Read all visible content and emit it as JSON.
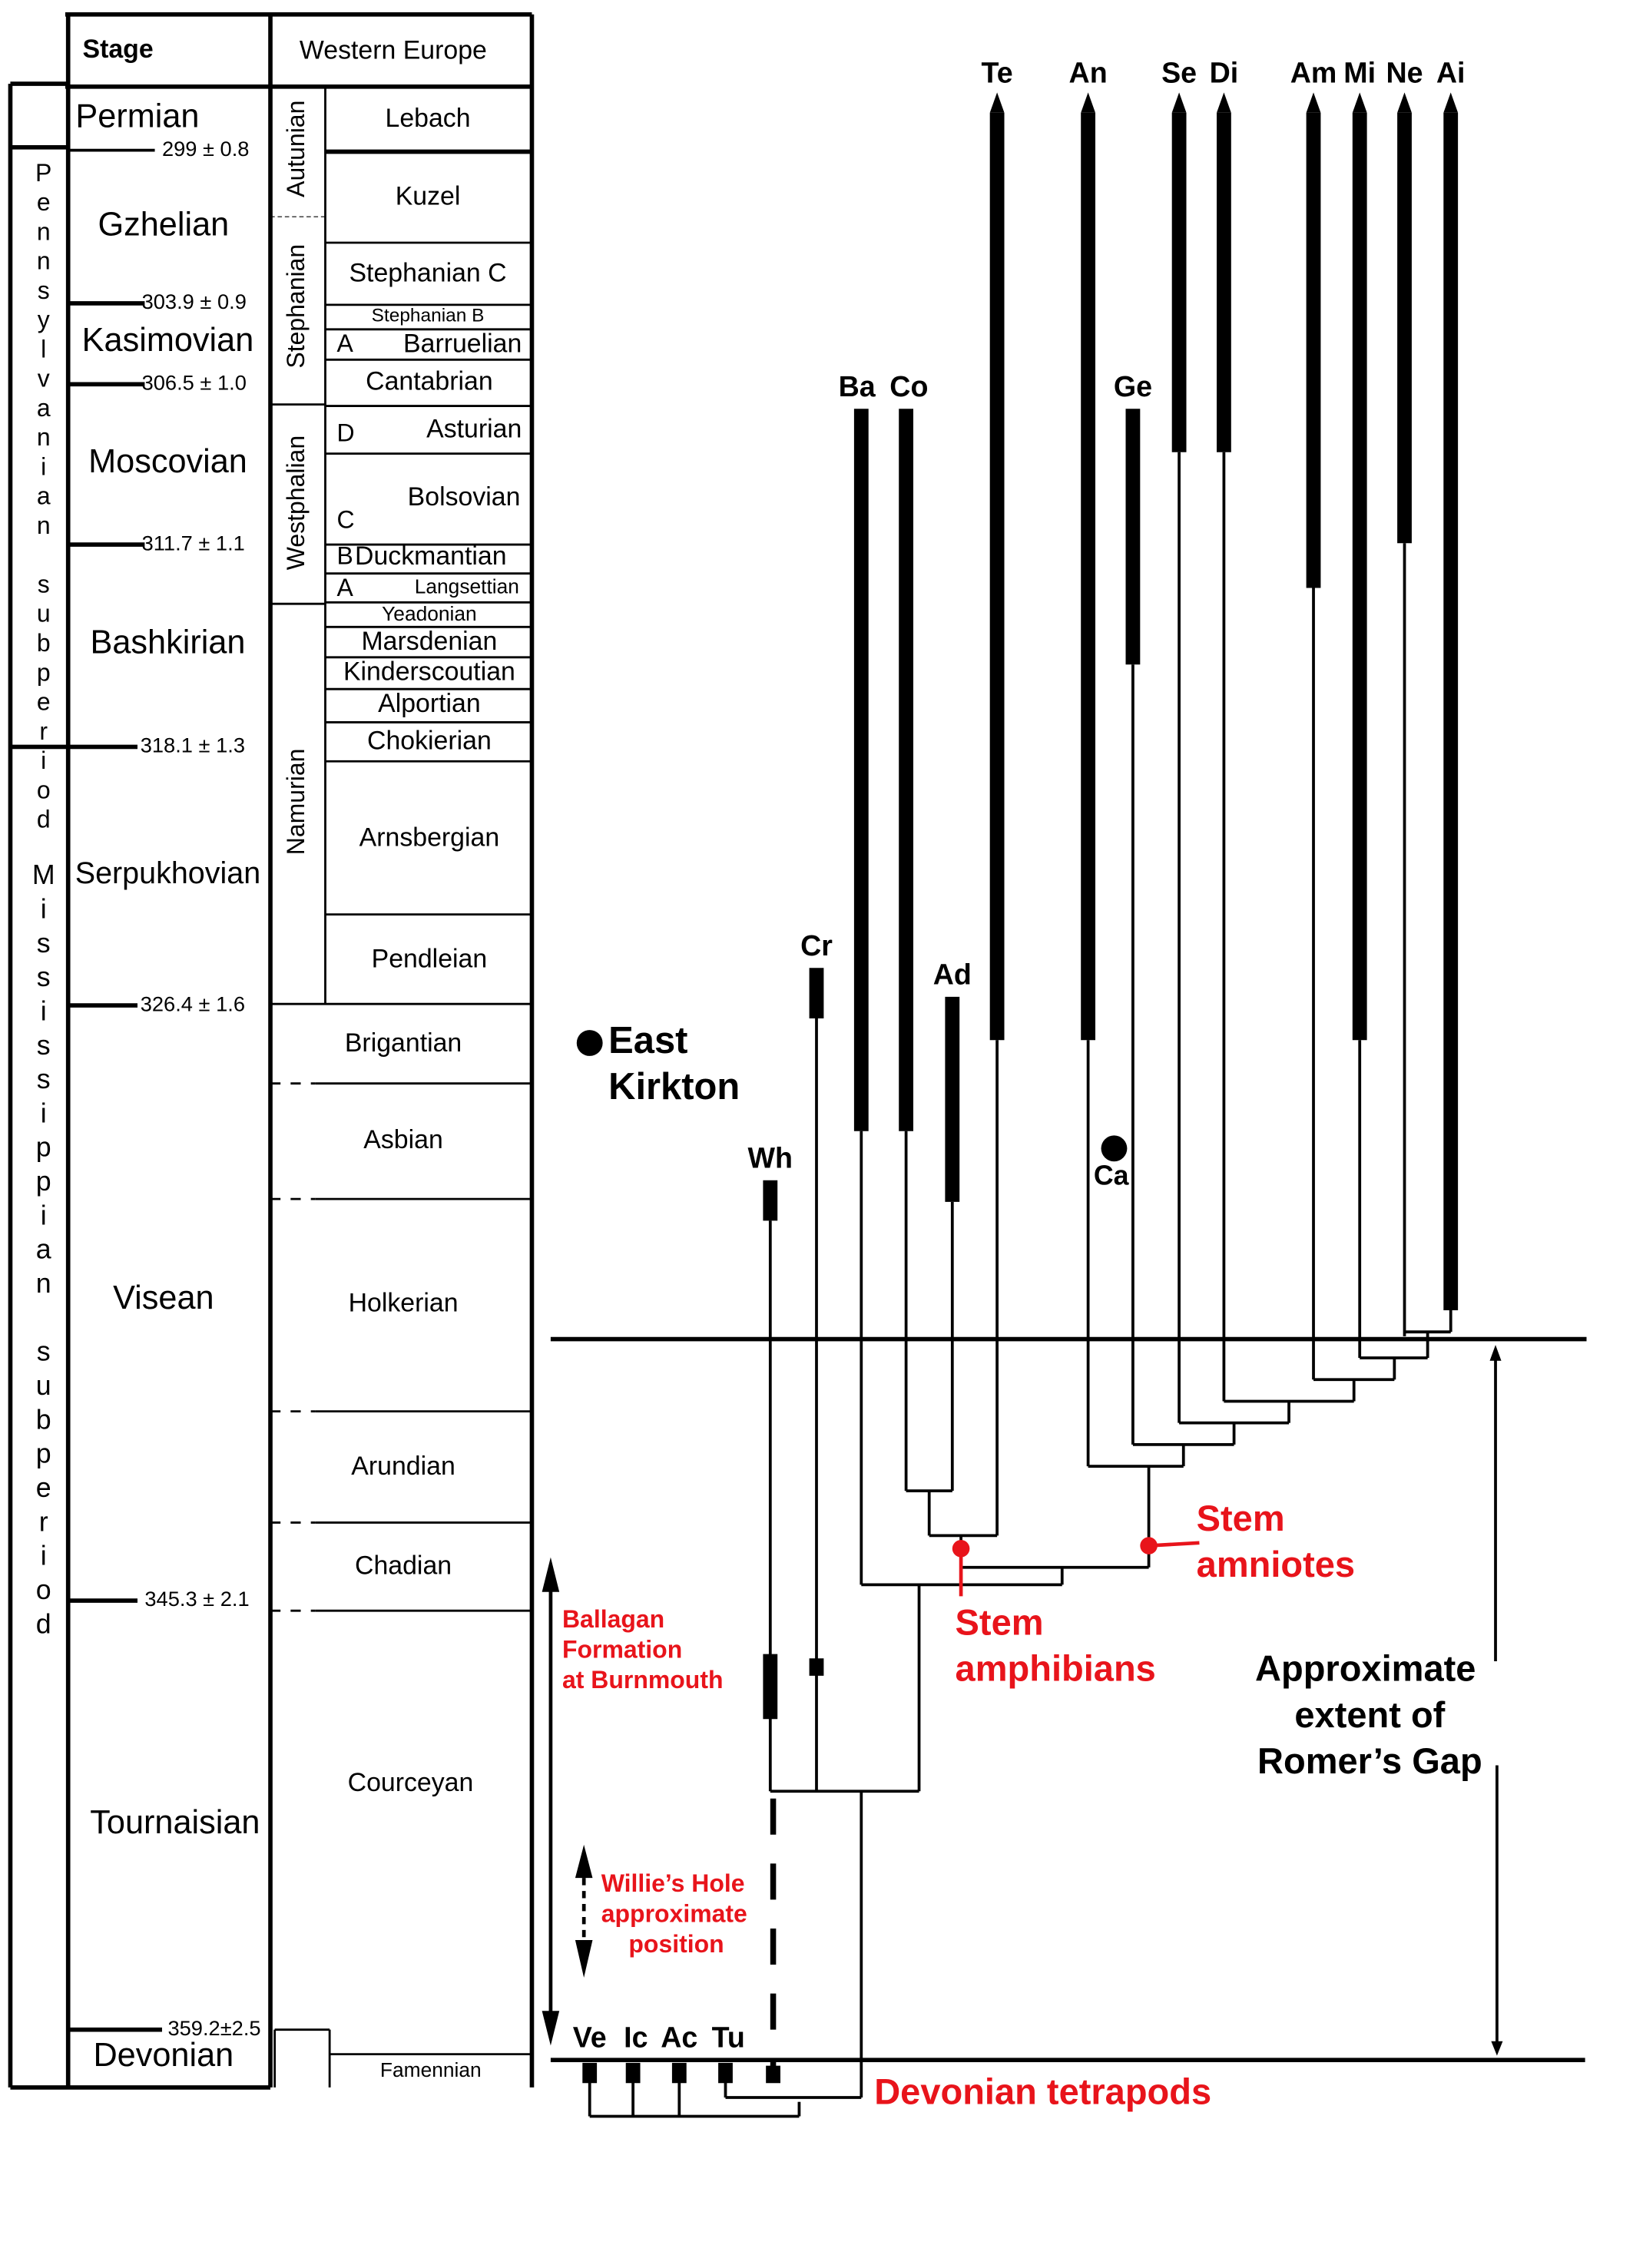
{
  "table": {
    "header_stage": "Stage",
    "header_region": "Western Europe",
    "subperiods": [
      "Pennsylvanian subperiod",
      "Mississippian subperiod"
    ],
    "stages": [
      "Permian",
      "Gzhelian",
      "Kasimovian",
      "Moscovian",
      "Bashkirian",
      "Serpukhovian",
      "Visean",
      "Tournaisian",
      "Devonian"
    ],
    "ages": [
      "299 ± 0.8",
      "303.9 ± 0.9",
      "306.5 ± 1.0",
      "311.7 ± 1.1",
      "318.1 ± 1.3",
      "326.4 ± 1.6",
      "345.3 ± 2.1",
      "359.2±2.5"
    ],
    "series": [
      "Autunian",
      "Stephanian",
      "Westphalian",
      "Namurian"
    ],
    "regional_stages": [
      "Lebach",
      "Kuzel",
      "Stephanian C",
      "Stephanian B",
      "Barruelian",
      "Cantabrian",
      "Asturian",
      "Bolsovian",
      "Duckmantian",
      "Langsettian",
      "Yeadonian",
      "Marsdenian",
      "Kinderscoutian",
      "Alportian",
      "Chokierian",
      "Arnsbergian",
      "Pendleian",
      "Brigantian",
      "Asbian",
      "Holkerian",
      "Arundian",
      "Chadian",
      "Courceyan",
      "Famennian"
    ],
    "substage_letters": [
      "A",
      "D",
      "C",
      "B",
      "A"
    ]
  },
  "diagram": {
    "taxa": [
      "Te",
      "An",
      "Se",
      "Di",
      "Am",
      "Mi",
      "Ne",
      "Ai",
      "Ba",
      "Co",
      "Ge",
      "Cr",
      "Ad",
      "Wh",
      "Ca",
      "Ve",
      "Ic",
      "Ac",
      "Tu"
    ],
    "east_kirkton": [
      "East",
      "Kirkton"
    ],
    "stem_amniotes": [
      "Stem",
      "amniotes"
    ],
    "stem_amphibians": [
      "Stem",
      "amphibians"
    ],
    "ballagan": [
      "Ballagan",
      "Formation",
      "at Burnmouth"
    ],
    "willies_hole": [
      "Willie’s Hole",
      "approximate",
      "position"
    ],
    "romers_gap": [
      "Approximate",
      "extent of",
      "Romer’s Gap"
    ],
    "devonian_tetrapods": "Devonian tetrapods",
    "colors": {
      "annotation": "#e8141b",
      "lines": "#000000"
    }
  }
}
